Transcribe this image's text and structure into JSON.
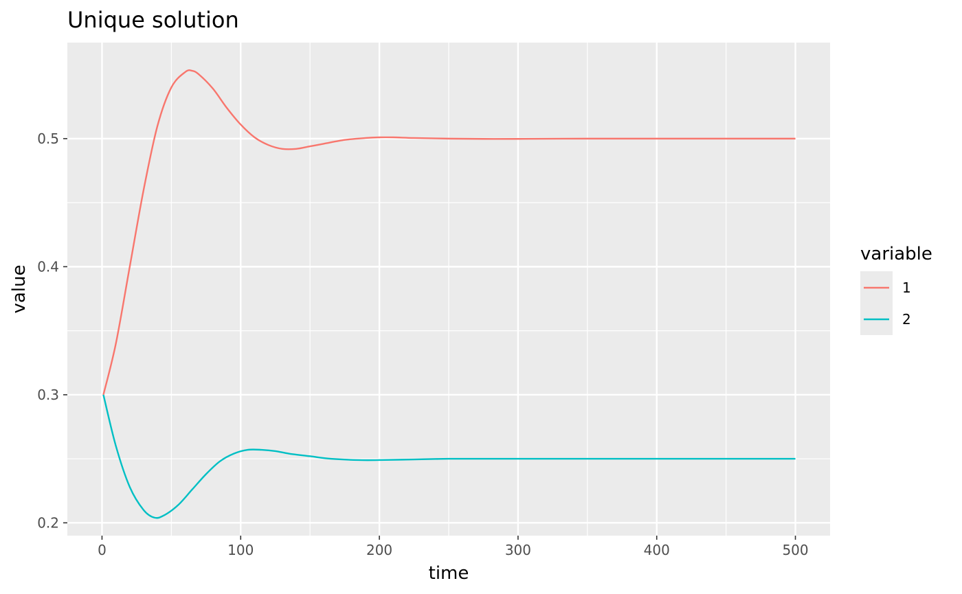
{
  "chart_data": {
    "type": "line",
    "title": "Unique solution",
    "xlabel": "time",
    "ylabel": "value",
    "xlim": [
      -25,
      525
    ],
    "ylim": [
      0.19,
      0.575
    ],
    "x_ticks": [
      0,
      100,
      200,
      300,
      400,
      500
    ],
    "y_ticks": [
      0.2,
      0.3,
      0.4,
      0.5
    ],
    "x_tick_labels": [
      "0",
      "100",
      "200",
      "300",
      "400",
      "500"
    ],
    "y_tick_labels": [
      "0.2",
      "0.3",
      "0.4",
      "0.5"
    ],
    "grid": true,
    "legend": {
      "title": "variable",
      "position": "right"
    },
    "series": [
      {
        "name": "1",
        "color": "#f8766d",
        "x": [
          1,
          10,
          20,
          30,
          40,
          50,
          60,
          65,
          70,
          80,
          90,
          100,
          110,
          120,
          130,
          140,
          150,
          160,
          175,
          190,
          200,
          210,
          225,
          250,
          275,
          300,
          350,
          400,
          450,
          500
        ],
        "y": [
          0.3,
          0.34,
          0.4,
          0.46,
          0.51,
          0.54,
          0.552,
          0.553,
          0.55,
          0.539,
          0.524,
          0.511,
          0.501,
          0.495,
          0.492,
          0.492,
          0.494,
          0.496,
          0.499,
          0.5005,
          0.501,
          0.501,
          0.5005,
          0.5,
          0.4998,
          0.4998,
          0.5,
          0.5,
          0.5,
          0.5
        ]
      },
      {
        "name": "2",
        "color": "#00bfc4",
        "x": [
          1,
          10,
          20,
          30,
          38,
          45,
          55,
          65,
          75,
          85,
          95,
          105,
          115,
          125,
          135,
          150,
          165,
          185,
          200,
          225,
          250,
          275,
          300,
          350,
          400,
          450,
          500
        ],
        "y": [
          0.3,
          0.26,
          0.228,
          0.21,
          0.204,
          0.206,
          0.214,
          0.226,
          0.238,
          0.248,
          0.254,
          0.257,
          0.257,
          0.256,
          0.254,
          0.252,
          0.25,
          0.249,
          0.249,
          0.2495,
          0.25,
          0.25,
          0.25,
          0.25,
          0.25,
          0.25,
          0.25
        ]
      }
    ]
  }
}
